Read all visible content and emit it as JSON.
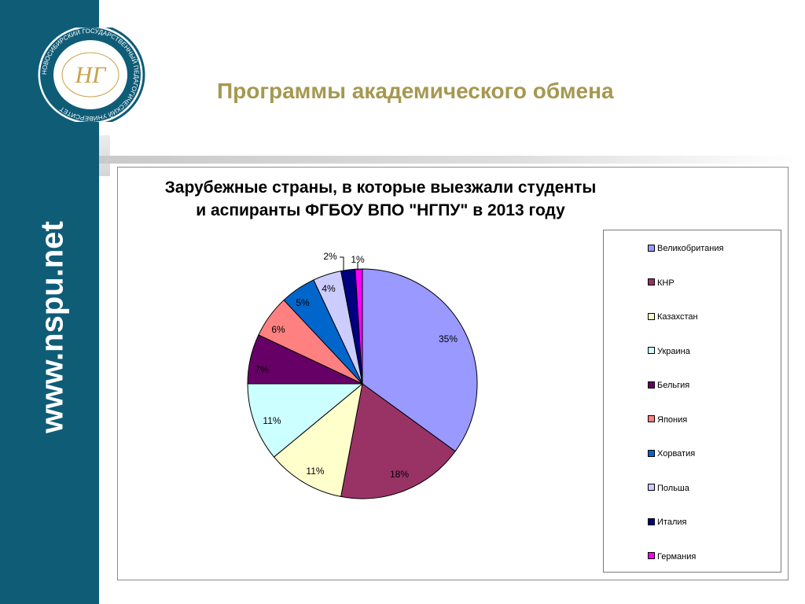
{
  "sidebar": {
    "site": "www.nspu.net"
  },
  "header": {
    "title": "Программы академического обмена"
  },
  "logo": {
    "ring_text": "НОВОСИБИРСКИЙ ГОСУДАРСТВЕННЫЙ ПЕДАГОГИЧЕСКИЙ УНИВЕРСИТЕТ",
    "monogram": "НГ"
  },
  "chart_data": {
    "type": "pie",
    "title_line1": "Зарубежные страны, в которые выезжали студенты",
    "title_line2": "и аспиранты ФГБОУ ВПО \"НГПУ\" в 2013 году",
    "legend_position": "right",
    "categories": [
      "Великобритания",
      "КНР",
      "Казахстан",
      "Украина",
      "Бельгия",
      "Япония",
      "Хорватия",
      "Польша",
      "Италия",
      "Германия"
    ],
    "values": [
      35,
      18,
      11,
      11,
      7,
      6,
      5,
      4,
      2,
      1
    ],
    "labels": [
      "35%",
      "18%",
      "11%",
      "11%",
      "7%",
      "6%",
      "5%",
      "4%",
      "2%",
      "1%"
    ],
    "colors": [
      "#9999ff",
      "#993366",
      "#ffffcc",
      "#ccffff",
      "#660066",
      "#ff8080",
      "#0066cc",
      "#ccccff",
      "#000080",
      "#ff00ff"
    ]
  }
}
